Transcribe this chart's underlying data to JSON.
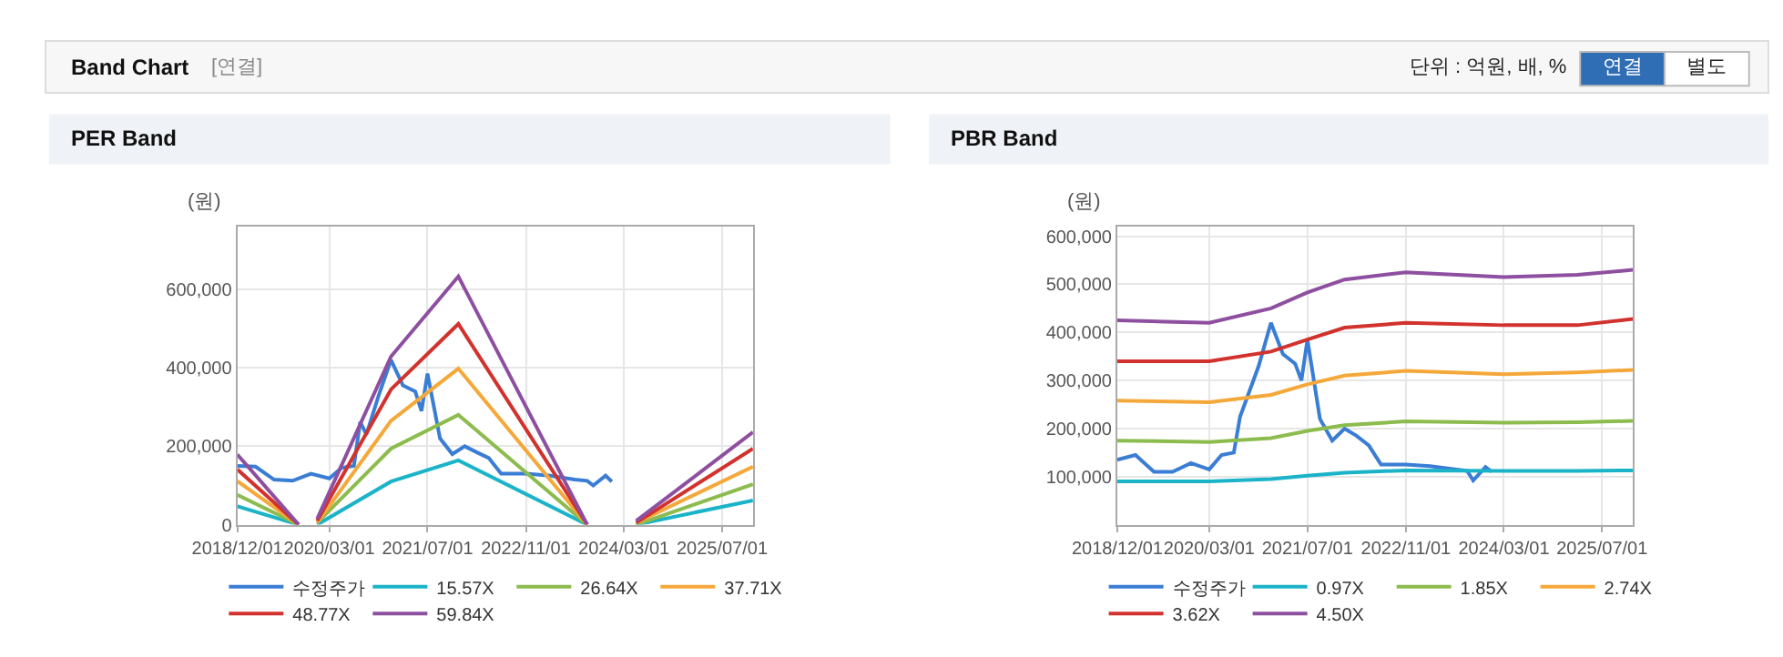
{
  "chart_data": [
    {
      "type": "other",
      "title": "Band Chart",
      "annotations": [
        "[연결]",
        "단위 : 억원, 배, %",
        "연결",
        "별도"
      ]
    },
    {
      "type": "line",
      "title": "PER Band",
      "ylabel": "(원)",
      "marker": "none",
      "grid": true,
      "legend": "bottom",
      "x": [
        "2018-12-01",
        "2019-10-01",
        "2019-11-15",
        "2020-01-01",
        "2021-01-01",
        "2021-12-01",
        "2023-09-01",
        "2024-01-01",
        "2024-05-01",
        "2025-12-01"
      ],
      "xlim": [
        "2018-12-01",
        "2025-12-01"
      ],
      "xticks": [
        {
          "value": "2018-12-01",
          "label": "2018/12/01"
        },
        {
          "value": "2020-03-01",
          "label": "2020/03/01"
        },
        {
          "value": "2021-07-01",
          "label": "2021/07/01"
        },
        {
          "value": "2022-11-01",
          "label": "2022/11/01"
        },
        {
          "value": "2024-03-01",
          "label": "2024/03/01"
        },
        {
          "value": "2025-07-01",
          "label": "2025/07/01"
        }
      ],
      "ylim": [
        0,
        760000
      ],
      "yticks": [
        0,
        {
          "value": 200000,
          "label": "200,000"
        },
        {
          "value": 400000,
          "label": "400,000"
        },
        {
          "value": 600000,
          "label": "600,000"
        }
      ],
      "series": [
        {
          "name": "수정주가",
          "color": "#3a7dd4",
          "x": [
            "2018-12-01",
            "2019-03-01",
            "2019-06-01",
            "2019-09-01",
            "2019-12-01",
            "2020-03-01",
            "2020-05-01",
            "2020-07-01",
            "2020-08-01",
            "2020-09-01",
            "2020-11-01",
            "2021-01-01",
            "2021-03-01",
            "2021-05-01",
            "2021-06-01",
            "2021-07-01",
            "2021-09-01",
            "2021-11-01",
            "2022-01-01",
            "2022-03-01",
            "2022-05-01",
            "2022-07-01",
            "2022-11-01",
            "2023-03-01",
            "2023-07-01",
            "2023-09-01",
            "2023-10-01",
            "2023-12-01",
            "2024-01-01"
          ],
          "values": [
            150000,
            148000,
            115000,
            112000,
            130000,
            118000,
            145000,
            150000,
            262000,
            230000,
            330000,
            420000,
            355000,
            340000,
            290000,
            385000,
            220000,
            180000,
            200000,
            185000,
            170000,
            130000,
            130000,
            125000,
            115000,
            112000,
            100000,
            125000,
            110000
          ]
        },
        {
          "name": "15.57X",
          "color": "#1bb3c8",
          "values": [
            47000,
            0,
            null,
            0,
            110000,
            164000,
            0,
            null,
            0,
            62000
          ]
        },
        {
          "name": "26.64X",
          "color": "#8cbb4e",
          "values": [
            76000,
            0,
            null,
            5000,
            194000,
            280000,
            0,
            null,
            0,
            103000
          ]
        },
        {
          "name": "37.71X",
          "color": "#f5a83a",
          "values": [
            111000,
            0,
            null,
            5000,
            265000,
            398000,
            0,
            null,
            5000,
            148000
          ]
        },
        {
          "name": "48.77X",
          "color": "#d2322d",
          "values": [
            141000,
            0,
            null,
            10000,
            345000,
            512000,
            0,
            null,
            5000,
            194000
          ]
        },
        {
          "name": "59.84X",
          "color": "#8e4fa0",
          "values": [
            179000,
            0,
            null,
            15000,
            429000,
            633000,
            0,
            null,
            10000,
            236000
          ]
        }
      ]
    },
    {
      "type": "line",
      "title": "PBR Band",
      "ylabel": "(원)",
      "marker": "none",
      "grid": true,
      "legend": "bottom",
      "x": [
        "2018-12-01",
        "2020-03-01",
        "2021-01-01",
        "2021-07-01",
        "2022-01-01",
        "2022-11-01",
        "2024-03-01",
        "2025-03-01",
        "2025-12-01"
      ],
      "xlim": [
        "2018-12-01",
        "2025-12-01"
      ],
      "xticks": [
        {
          "value": "2018-12-01",
          "label": "2018/12/01"
        },
        {
          "value": "2020-03-01",
          "label": "2020/03/01"
        },
        {
          "value": "2021-07-01",
          "label": "2021/07/01"
        },
        {
          "value": "2022-11-01",
          "label": "2022/11/01"
        },
        {
          "value": "2024-03-01",
          "label": "2024/03/01"
        },
        {
          "value": "2025-07-01",
          "label": "2025/07/01"
        }
      ],
      "ylim": [
        0,
        620000
      ],
      "yticks": [
        {
          "value": 100000,
          "label": "100,000"
        },
        {
          "value": 200000,
          "label": "200,000"
        },
        {
          "value": 300000,
          "label": "300,000"
        },
        {
          "value": 400000,
          "label": "400,000"
        },
        {
          "value": 500000,
          "label": "500,000"
        },
        {
          "value": 600000,
          "label": "600,000"
        }
      ],
      "series": [
        {
          "name": "수정주가",
          "color": "#3a7dd4",
          "x": [
            "2018-12-01",
            "2019-03-01",
            "2019-06-01",
            "2019-09-01",
            "2019-12-01",
            "2020-03-01",
            "2020-05-01",
            "2020-07-01",
            "2020-08-01",
            "2020-09-01",
            "2020-11-01",
            "2021-01-01",
            "2021-03-01",
            "2021-05-01",
            "2021-06-01",
            "2021-07-01",
            "2021-09-01",
            "2021-11-01",
            "2022-01-01",
            "2022-03-01",
            "2022-05-01",
            "2022-07-01",
            "2022-11-01",
            "2023-03-01",
            "2023-07-01",
            "2023-09-01",
            "2023-10-01",
            "2023-12-01",
            "2024-01-01"
          ],
          "values": [
            135000,
            145000,
            110000,
            110000,
            128000,
            115000,
            145000,
            150000,
            225000,
            260000,
            330000,
            420000,
            355000,
            335000,
            300000,
            385000,
            220000,
            175000,
            200000,
            185000,
            165000,
            125000,
            125000,
            122000,
            115000,
            112000,
            92000,
            120000,
            110000
          ]
        },
        {
          "name": "0.97X",
          "color": "#1bb3c8",
          "values": [
            90000,
            90000,
            95000,
            102000,
            108000,
            113000,
            112000,
            112000,
            113000
          ]
        },
        {
          "name": "1.85X",
          "color": "#8cbb4e",
          "values": [
            175000,
            172000,
            180000,
            195000,
            207000,
            215000,
            212000,
            213000,
            216000
          ]
        },
        {
          "name": "2.74X",
          "color": "#f5a83a",
          "values": [
            258000,
            255000,
            270000,
            292000,
            310000,
            320000,
            313000,
            317000,
            322000
          ]
        },
        {
          "name": "3.62X",
          "color": "#d2322d",
          "values": [
            340000,
            340000,
            360000,
            385000,
            410000,
            420000,
            415000,
            415000,
            428000
          ]
        },
        {
          "name": "4.50X",
          "color": "#8e4fa0",
          "values": [
            425000,
            420000,
            450000,
            483000,
            510000,
            525000,
            515000,
            520000,
            530000
          ]
        }
      ]
    }
  ]
}
